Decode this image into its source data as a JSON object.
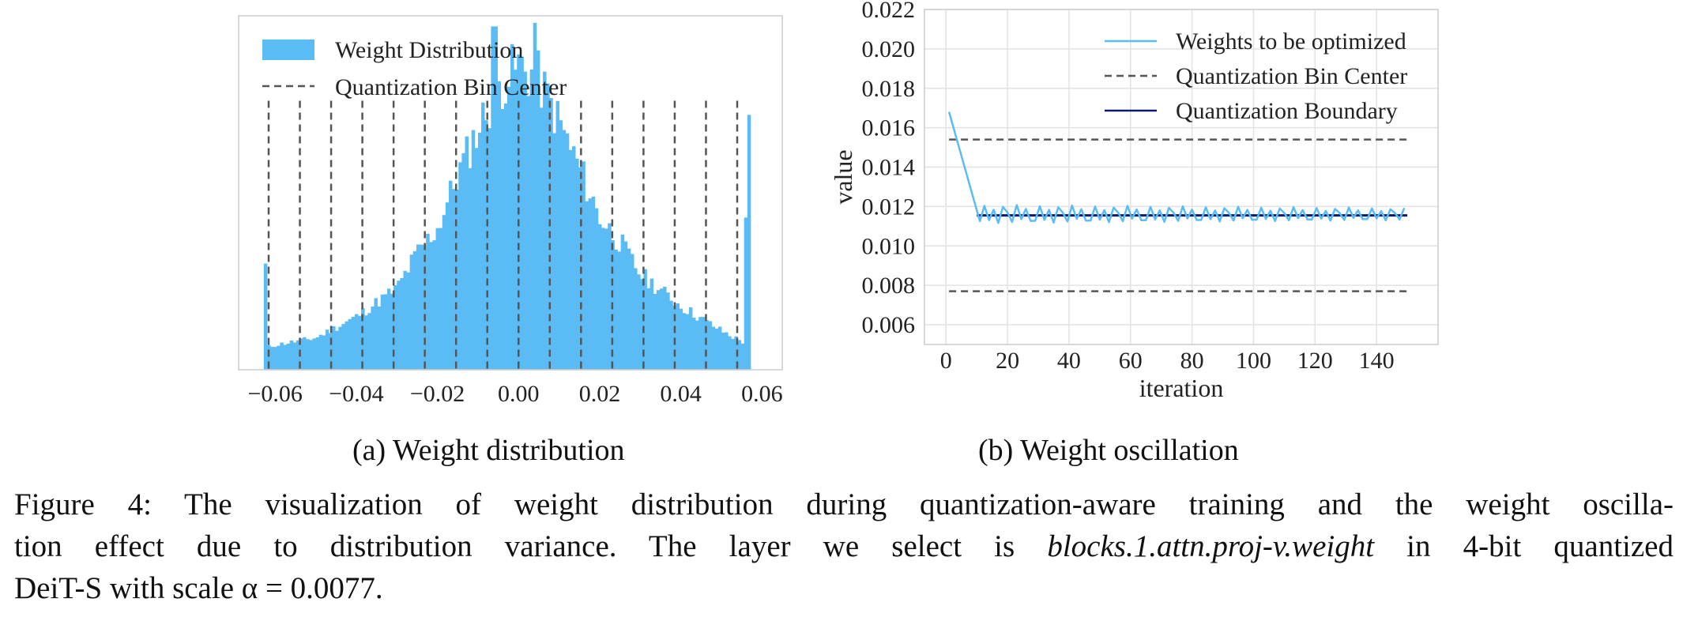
{
  "chart_data": [
    {
      "type": "histogram",
      "panel": "a",
      "title": "",
      "xlabel": "",
      "ylabel": "",
      "xlim": [
        -0.069,
        0.065
      ],
      "xticks": [
        -0.06,
        -0.04,
        -0.02,
        0.0,
        0.02,
        0.04,
        0.06
      ],
      "xtick_labels": [
        "−0.06",
        "−0.04",
        "−0.02",
        "0.00",
        "0.02",
        "0.04",
        "0.06"
      ],
      "legend": [
        {
          "label": "Weight Distribution",
          "style": "patch",
          "color": "#5bbcf5"
        },
        {
          "label": "Quantization Bin Center",
          "style": "dashed",
          "color": "#555555"
        }
      ],
      "legend_placement": "top-left",
      "bar_color": "#5bbcf5",
      "bin_centers_x": [
        -0.0616,
        -0.0539,
        -0.0462,
        -0.0385,
        -0.0308,
        -0.0231,
        -0.0154,
        -0.0077,
        0.0,
        0.0077,
        0.0154,
        0.0231,
        0.0308,
        0.0385,
        0.0462,
        0.0539
      ],
      "bin_center_height_fraction": 0.76,
      "hist_profile": [
        [
          -0.063,
          0.06
        ],
        [
          -0.06,
          0.07
        ],
        [
          -0.05,
          0.09
        ],
        [
          -0.04,
          0.15
        ],
        [
          -0.03,
          0.23
        ],
        [
          -0.025,
          0.33
        ],
        [
          -0.02,
          0.4
        ],
        [
          -0.015,
          0.55
        ],
        [
          -0.01,
          0.68
        ],
        [
          -0.005,
          0.8
        ],
        [
          0.0,
          0.86
        ],
        [
          0.005,
          0.82
        ],
        [
          0.01,
          0.7
        ],
        [
          0.015,
          0.57
        ],
        [
          0.02,
          0.43
        ],
        [
          0.025,
          0.36
        ],
        [
          0.03,
          0.27
        ],
        [
          0.04,
          0.18
        ],
        [
          0.05,
          0.11
        ],
        [
          0.055,
          0.08
        ],
        [
          0.057,
          0.07
        ]
      ],
      "hist_spikes": [
        [
          -0.0625,
          0.3
        ],
        [
          0.0567,
          0.72
        ],
        [
          0.0558,
          0.43
        ],
        [
          0.004,
          0.98
        ],
        [
          -0.006,
          0.97
        ]
      ]
    },
    {
      "type": "line",
      "panel": "b",
      "title": "",
      "xlabel": "iteration",
      "ylabel": "value",
      "xlim": [
        -7,
        160
      ],
      "ylim": [
        0.005,
        0.022
      ],
      "xticks": [
        0,
        20,
        40,
        60,
        80,
        100,
        120,
        140
      ],
      "yticks": [
        0.006,
        0.008,
        0.01,
        0.012,
        0.014,
        0.016,
        0.018,
        0.02,
        0.022
      ],
      "ytick_labels": [
        "0.006",
        "0.008",
        "0.010",
        "0.012",
        "0.014",
        "0.016",
        "0.018",
        "0.020",
        "0.022"
      ],
      "grid": true,
      "legend_placement": "top-right",
      "series": [
        {
          "name": "Weights to be optimized",
          "color": "#5bbcf5",
          "style": "solid",
          "x_range": [
            1,
            150
          ],
          "start_value": 0.0168,
          "drop_end_iter": 11,
          "oscillation_mean": 0.0116,
          "oscillation_amplitude": 0.0005,
          "oscillation_period": 3
        },
        {
          "name": "Quantization Bin Center",
          "color": "#555555",
          "style": "dashed",
          "x": [
            1,
            150
          ],
          "values": [
            0.0154,
            0.0154
          ],
          "values_lower": [
            0.0077,
            0.0077
          ]
        },
        {
          "name": "Quantization Boundary",
          "color": "#0a1a6e",
          "style": "solid",
          "x": [
            10,
            150
          ],
          "values": [
            0.01155,
            0.01155
          ]
        }
      ]
    }
  ],
  "subcaptions": {
    "a": "(a) Weight distribution",
    "b": "(b) Weight oscillation"
  },
  "caption": {
    "line1": "Figure 4: The visualization of weight distribution during quantization-aware training and the weight oscilla-",
    "line2_before": "tion effect due to distribution variance. The layer we select is ",
    "line2_italic": "blocks.1.attn.proj-v.weight",
    "line2_after": " in 4-bit quantized",
    "line3": "DeiT-S with scale α = 0.0077."
  }
}
